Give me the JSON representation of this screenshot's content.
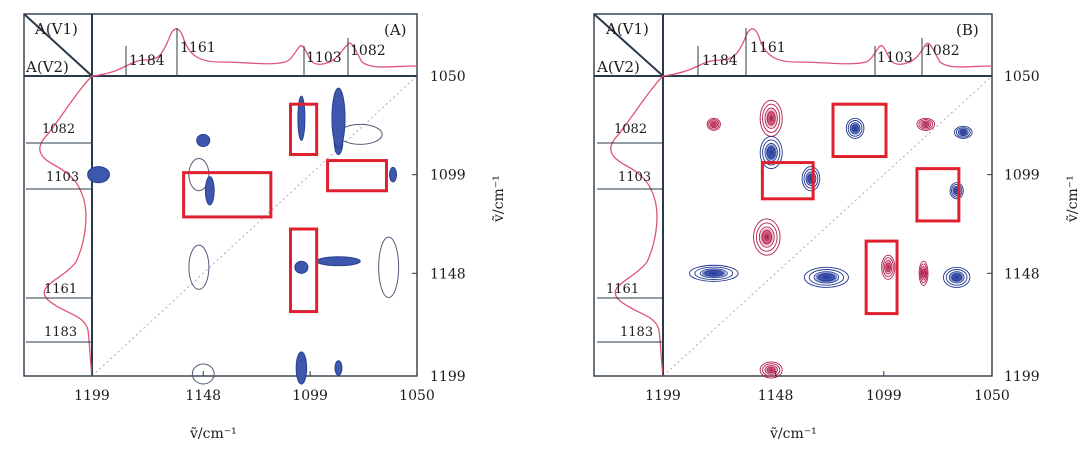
{
  "chart_data": [
    {
      "type": "heatmap",
      "panel_label": "(A)",
      "corner_labels": {
        "top": "A(V1)",
        "bottom": "A(V2)"
      },
      "xlabel": "ṽ/cm⁻¹",
      "ylabel": "ṽ/cm⁻¹",
      "xlim": [
        1199,
        1050
      ],
      "ylim": [
        1050,
        1199
      ],
      "x_ticks": [
        "1199",
        "1148",
        "1099",
        "1050"
      ],
      "y_ticks": [
        "1050",
        "1099",
        "1148",
        "1199"
      ],
      "top_spectrum_peaks": [
        "1184",
        "1161",
        "1103",
        "1082"
      ],
      "left_spectrum_peaks": [
        "1082",
        "1103",
        "1161",
        "1183"
      ],
      "regions": [
        {
          "x": 1086,
          "y": 1082,
          "sign": "negative"
        },
        {
          "x": 1148,
          "y": 1082,
          "sign": "negative"
        },
        {
          "x": 1076,
          "y": 1079,
          "sign": "positive"
        },
        {
          "x": 1103,
          "y": 1071,
          "sign": "negative"
        },
        {
          "x": 1086,
          "y": 1071,
          "sign": "negative"
        },
        {
          "x": 1196,
          "y": 1099,
          "sign": "negative"
        },
        {
          "x": 1150,
          "y": 1099,
          "sign": "positive"
        },
        {
          "x": 1061,
          "y": 1099,
          "sign": "negative"
        },
        {
          "x": 1145,
          "y": 1107,
          "sign": "negative"
        },
        {
          "x": 1103,
          "y": 1145,
          "sign": "negative"
        },
        {
          "x": 1086,
          "y": 1142,
          "sign": "negative"
        },
        {
          "x": 1150,
          "y": 1145,
          "sign": "positive"
        },
        {
          "x": 1063,
          "y": 1145,
          "sign": "positive"
        },
        {
          "x": 1148,
          "y": 1198,
          "sign": "positive"
        },
        {
          "x": 1103,
          "y": 1195,
          "sign": "negative"
        },
        {
          "x": 1086,
          "y": 1195,
          "sign": "negative"
        }
      ],
      "highlight_boxes": [
        {
          "x": [
            1096,
            1108
          ],
          "y": [
            1064,
            1089
          ]
        },
        {
          "x": [
            1064,
            1091
          ],
          "y": [
            1092,
            1107
          ]
        },
        {
          "x": [
            1117,
            1157
          ],
          "y": [
            1098,
            1120
          ]
        },
        {
          "x": [
            1096,
            1108
          ],
          "y": [
            1126,
            1167
          ]
        }
      ]
    },
    {
      "type": "heatmap",
      "panel_label": "(B)",
      "corner_labels": {
        "top": "A(V1)",
        "bottom": "A(V2)"
      },
      "xlabel": "ṽ/cm⁻¹",
      "ylabel": "ṽ/cm⁻¹",
      "xlim": [
        1199,
        1050
      ],
      "ylim": [
        1050,
        1199
      ],
      "x_ticks": [
        "1199",
        "1148",
        "1099",
        "1050"
      ],
      "y_ticks": [
        "1050",
        "1099",
        "1148",
        "1199"
      ],
      "top_spectrum_peaks": [
        "1184",
        "1161",
        "1103",
        "1082"
      ],
      "left_spectrum_peaks": [
        "1082",
        "1103",
        "1161",
        "1183"
      ],
      "regions": [
        {
          "x": 1150,
          "y": 1071,
          "sign": "positive"
        },
        {
          "x": 1150,
          "y": 1088,
          "sign": "negative"
        },
        {
          "x": 1176,
          "y": 1074,
          "sign": "positive"
        },
        {
          "x": 1080,
          "y": 1074,
          "sign": "positive"
        },
        {
          "x": 1112,
          "y": 1076,
          "sign": "negative"
        },
        {
          "x": 1063,
          "y": 1078,
          "sign": "negative"
        },
        {
          "x": 1132,
          "y": 1101,
          "sign": "negative"
        },
        {
          "x": 1066,
          "y": 1107,
          "sign": "negative"
        },
        {
          "x": 1152,
          "y": 1130,
          "sign": "positive"
        },
        {
          "x": 1176,
          "y": 1148,
          "sign": "negative"
        },
        {
          "x": 1125,
          "y": 1150,
          "sign": "negative"
        },
        {
          "x": 1097,
          "y": 1145,
          "sign": "positive"
        },
        {
          "x": 1081,
          "y": 1148,
          "sign": "positive"
        },
        {
          "x": 1066,
          "y": 1150,
          "sign": "negative"
        },
        {
          "x": 1150,
          "y": 1196,
          "sign": "positive"
        }
      ],
      "highlight_boxes": [
        {
          "x": [
            1098,
            1122
          ],
          "y": [
            1064,
            1090
          ]
        },
        {
          "x": [
            1131,
            1154
          ],
          "y": [
            1093,
            1111
          ]
        },
        {
          "x": [
            1065,
            1084
          ],
          "y": [
            1096,
            1122
          ]
        },
        {
          "x": [
            1093,
            1107
          ],
          "y": [
            1132,
            1168
          ]
        }
      ]
    }
  ]
}
